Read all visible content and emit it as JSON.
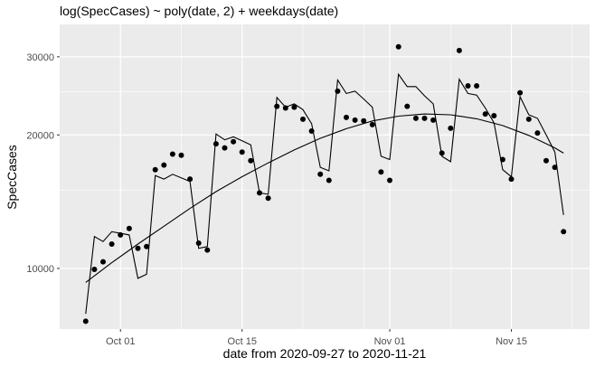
{
  "chart_data": {
    "type": "scatter",
    "title": "log(SpecCases) ~ poly(date, 2) + weekdays(date)",
    "xlabel": "date from 2020-09-27 to 2020-11-21",
    "ylabel": "SpecCases",
    "y_scale": "log",
    "xlim": [
      "2020-09-24",
      "2020-11-24"
    ],
    "ylim": [
      7300,
      35500
    ],
    "grid": true,
    "x_ticks": [
      {
        "date": "2020-10-01",
        "label": "Oct 01"
      },
      {
        "date": "2020-10-15",
        "label": "Oct 15"
      },
      {
        "date": "2020-11-01",
        "label": "Nov 01"
      },
      {
        "date": "2020-11-15",
        "label": "Nov 15"
      }
    ],
    "x_minor_ticks": [
      "2020-10-08",
      "2020-10-22",
      "2020-10-29",
      "2020-11-08",
      "2020-11-22"
    ],
    "y_ticks": [
      {
        "value": 10000,
        "label": "10000"
      },
      {
        "value": 20000,
        "label": "20000"
      },
      {
        "value": 30000,
        "label": "30000"
      }
    ],
    "y_minor_ticks": [
      15000,
      25000
    ],
    "series": [
      {
        "kind": "points",
        "x": [
          "2020-09-27",
          "2020-09-28",
          "2020-09-29",
          "2020-09-30",
          "2020-10-01",
          "2020-10-02",
          "2020-10-03",
          "2020-10-04",
          "2020-10-05",
          "2020-10-06",
          "2020-10-07",
          "2020-10-08",
          "2020-10-09",
          "2020-10-10",
          "2020-10-11",
          "2020-10-12",
          "2020-10-13",
          "2020-10-14",
          "2020-10-15",
          "2020-10-16",
          "2020-10-17",
          "2020-10-18",
          "2020-10-19",
          "2020-10-20",
          "2020-10-21",
          "2020-10-22",
          "2020-10-23",
          "2020-10-24",
          "2020-10-25",
          "2020-10-26",
          "2020-10-27",
          "2020-10-28",
          "2020-10-29",
          "2020-10-30",
          "2020-10-31",
          "2020-11-01",
          "2020-11-02",
          "2020-11-03",
          "2020-11-04",
          "2020-11-05",
          "2020-11-06",
          "2020-11-07",
          "2020-11-08",
          "2020-11-09",
          "2020-11-10",
          "2020-11-11",
          "2020-11-12",
          "2020-11-13",
          "2020-11-14",
          "2020-11-15",
          "2020-11-16",
          "2020-11-17",
          "2020-11-18",
          "2020-11-19",
          "2020-11-20",
          "2020-11-21"
        ],
        "y": [
          7600,
          9950,
          10350,
          11350,
          11900,
          12300,
          11100,
          11200,
          16700,
          17100,
          18100,
          18000,
          15900,
          11400,
          11000,
          19100,
          18700,
          19300,
          18300,
          17500,
          14800,
          14400,
          23200,
          23000,
          23100,
          21700,
          20400,
          16300,
          15800,
          25100,
          21900,
          21600,
          21500,
          21100,
          16500,
          15800,
          31600,
          23200,
          21800,
          21800,
          21600,
          18200,
          20700,
          31000,
          25800,
          25800,
          22300,
          22100,
          17600,
          15900,
          24900,
          21700,
          20200,
          17500,
          16900,
          12100
        ]
      },
      {
        "kind": "fitted-line",
        "x": [
          "2020-09-27",
          "2020-09-28",
          "2020-09-29",
          "2020-09-30",
          "2020-10-01",
          "2020-10-02",
          "2020-10-03",
          "2020-10-04",
          "2020-10-05",
          "2020-10-06",
          "2020-10-07",
          "2020-10-08",
          "2020-10-09",
          "2020-10-10",
          "2020-10-11",
          "2020-10-12",
          "2020-10-13",
          "2020-10-14",
          "2020-10-15",
          "2020-10-16",
          "2020-10-17",
          "2020-10-18",
          "2020-10-19",
          "2020-10-20",
          "2020-10-21",
          "2020-10-22",
          "2020-10-23",
          "2020-10-24",
          "2020-10-25",
          "2020-10-26",
          "2020-10-27",
          "2020-10-28",
          "2020-10-29",
          "2020-10-30",
          "2020-10-31",
          "2020-11-01",
          "2020-11-02",
          "2020-11-03",
          "2020-11-04",
          "2020-11-05",
          "2020-11-06",
          "2020-11-07",
          "2020-11-08",
          "2020-11-09",
          "2020-11-10",
          "2020-11-11",
          "2020-11-12",
          "2020-11-13",
          "2020-11-14",
          "2020-11-15",
          "2020-11-16",
          "2020-11-17",
          "2020-11-18",
          "2020-11-19",
          "2020-11-20",
          "2020-11-21"
        ],
        "y": [
          7900,
          11800,
          11500,
          12100,
          12000,
          11900,
          9500,
          9700,
          16200,
          15900,
          16300,
          16000,
          15700,
          11100,
          11200,
          20100,
          19500,
          19800,
          19400,
          19000,
          14800,
          14700,
          24300,
          23100,
          23500,
          22800,
          21200,
          16900,
          16600,
          26600,
          24800,
          25100,
          24100,
          23100,
          17900,
          17600,
          27400,
          25700,
          25700,
          24500,
          23500,
          17900,
          17400,
          26700,
          24800,
          24600,
          23000,
          21300,
          16700,
          16100,
          24400,
          22200,
          21800,
          20000,
          18300,
          13200
        ]
      },
      {
        "kind": "quadratic-trend",
        "x": [
          "2020-09-27",
          "2020-09-30",
          "2020-10-03",
          "2020-10-06",
          "2020-10-09",
          "2020-10-12",
          "2020-10-15",
          "2020-10-18",
          "2020-10-21",
          "2020-10-24",
          "2020-10-27",
          "2020-10-30",
          "2020-11-02",
          "2020-11-05",
          "2020-11-08",
          "2020-11-11",
          "2020-11-14",
          "2020-11-17",
          "2020-11-20",
          "2020-11-21"
        ],
        "y": [
          9300,
          10300,
          11350,
          12450,
          13650,
          14900,
          16100,
          17300,
          18500,
          19650,
          20650,
          21500,
          22050,
          22300,
          22200,
          21750,
          21000,
          19950,
          18700,
          18200
        ]
      }
    ]
  }
}
